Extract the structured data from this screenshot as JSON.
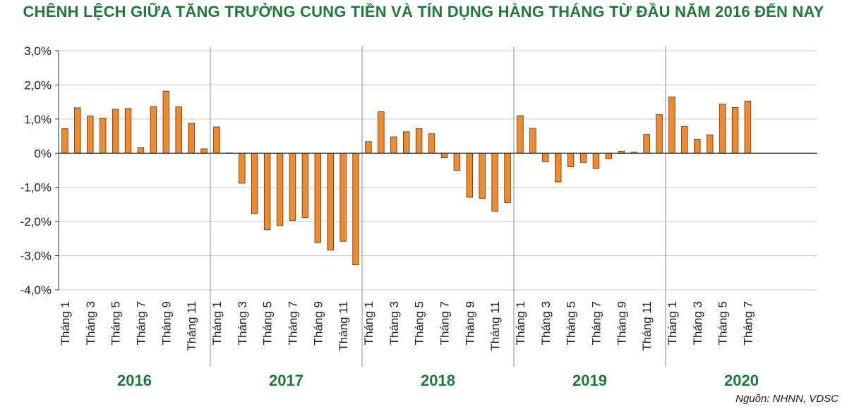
{
  "chart_data": {
    "type": "bar",
    "title": "CHÊNH LỆCH GIỮA TĂNG TRƯỞNG CUNG TIỀN VÀ TÍN DỤNG HÀNG THÁNG TỪ ĐẦU NĂM 2016 ĐẾN NAY",
    "source": "Nguồn: NHNN, VDSC",
    "ylim": [
      -4.0,
      3.0
    ],
    "yticks": [
      3.0,
      2.0,
      1.0,
      0,
      -1.0,
      -2.0,
      -3.0,
      -4.0
    ],
    "ytick_labels": [
      "3,0%",
      "2,0%",
      "1,0%",
      "0%",
      "-1,0%",
      "-2,0%",
      "-3,0%",
      "-4,0%"
    ],
    "grid": true,
    "bar_color": "#ef8a2e",
    "year_label_color": "#1f7a3a",
    "groups": [
      {
        "year": "2016",
        "months": [
          "Tháng 1",
          "Tháng 2",
          "Tháng 3",
          "Tháng 4",
          "Tháng 5",
          "Tháng 6",
          "Tháng 7",
          "Tháng 8",
          "Tháng 9",
          "Tháng 10",
          "Tháng 11",
          "Tháng 12"
        ],
        "labeled": [
          "Tháng 1",
          "Tháng 3",
          "Tháng 5",
          "Tháng 7",
          "Tháng 9",
          "Tháng 11"
        ],
        "values": [
          0.72,
          1.33,
          1.09,
          1.03,
          1.29,
          1.31,
          0.16,
          1.37,
          1.82,
          1.36,
          0.88,
          0.13
        ]
      },
      {
        "year": "2017",
        "months": [
          "Tháng 1",
          "Tháng 2",
          "Tháng 3",
          "Tháng 4",
          "Tháng 5",
          "Tháng 6",
          "Tháng 7",
          "Tháng 8",
          "Tháng 9",
          "Tháng 10",
          "Tháng 11",
          "Tháng 12"
        ],
        "labeled": [
          "Tháng 1",
          "Tháng 3",
          "Tháng 5",
          "Tháng 7",
          "Tháng 9",
          "Tháng 11"
        ],
        "values": [
          0.77,
          0.01,
          -0.88,
          -1.77,
          -2.24,
          -2.12,
          -1.97,
          -1.88,
          -2.62,
          -2.84,
          -2.58,
          -3.27
        ]
      },
      {
        "year": "2018",
        "months": [
          "Tháng 1",
          "Tháng 2",
          "Tháng 3",
          "Tháng 4",
          "Tháng 5",
          "Tháng 6",
          "Tháng 7",
          "Tháng 8",
          "Tháng 9",
          "Tháng 10",
          "Tháng 11",
          "Tháng 12"
        ],
        "labeled": [
          "Tháng 1",
          "Tháng 3",
          "Tháng 5",
          "Tháng 7",
          "Tháng 9",
          "Tháng 11"
        ],
        "values": [
          0.34,
          1.22,
          0.48,
          0.63,
          0.72,
          0.57,
          -0.13,
          -0.5,
          -1.29,
          -1.32,
          -1.7,
          -1.45
        ]
      },
      {
        "year": "2019",
        "months": [
          "Tháng 1",
          "Tháng 2",
          "Tháng 3",
          "Tháng 4",
          "Tháng 5",
          "Tháng 6",
          "Tháng 7",
          "Tháng 8",
          "Tháng 9",
          "Tháng 10",
          "Tháng 11",
          "Tháng 12"
        ],
        "labeled": [
          "Tháng 1",
          "Tháng 3",
          "Tháng 5",
          "Tháng 7",
          "Tháng 9",
          "Tháng 11"
        ],
        "values": [
          1.1,
          0.73,
          -0.25,
          -0.84,
          -0.4,
          -0.27,
          -0.45,
          -0.16,
          0.06,
          0.03,
          0.55,
          1.13
        ]
      },
      {
        "year": "2020",
        "months": [
          "Tháng 1",
          "Tháng 2",
          "Tháng 3",
          "Tháng 4",
          "Tháng 5",
          "Tháng 6",
          "Tháng 7"
        ],
        "labeled": [
          "Tháng 1",
          "Tháng 3",
          "Tháng 5",
          "Tháng 7"
        ],
        "values": [
          1.65,
          0.78,
          0.41,
          0.54,
          1.44,
          1.34,
          1.53
        ]
      }
    ]
  }
}
